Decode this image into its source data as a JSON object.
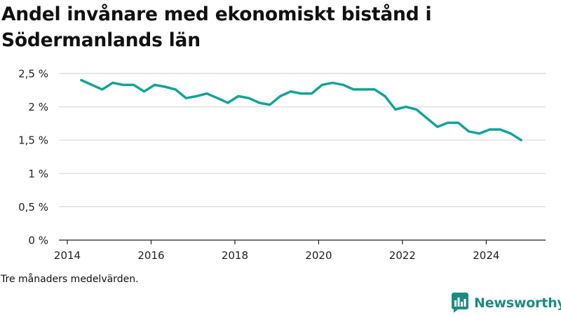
{
  "title": "Andel invånare med ekonomiskt bistånd i Södermanlands län",
  "note": "Tre månaders medelvärden.",
  "brand": {
    "name": "Newsworthy",
    "logo_icon": "newsworthy-logo-icon",
    "color": "#1c8c82"
  },
  "chart_data": {
    "type": "line",
    "title": "Andel invånare med ekonomiskt bistånd i Södermanlands län",
    "xlabel": "",
    "ylabel": "",
    "x_ticks": [
      "2014",
      "2016",
      "2018",
      "2020",
      "2022",
      "2024"
    ],
    "y_ticks": [
      "0 %",
      "0,5 %",
      "1 %",
      "1,5 %",
      "2 %",
      "2,5 %"
    ],
    "ylim": [
      0,
      2.5
    ],
    "xlim": [
      "2014-01",
      "2025-06"
    ],
    "grid": "horizontal",
    "line_color": "#13a398",
    "series": [
      {
        "points": [
          [
            "2014-05",
            2.4
          ],
          [
            "2014-08",
            2.33
          ],
          [
            "2014-11",
            2.26
          ],
          [
            "2015-02",
            2.36
          ],
          [
            "2015-05",
            2.33
          ],
          [
            "2015-08",
            2.33
          ],
          [
            "2015-11",
            2.23
          ],
          [
            "2016-02",
            2.33
          ],
          [
            "2016-05",
            2.3
          ],
          [
            "2016-08",
            2.26
          ],
          [
            "2016-11",
            2.13
          ],
          [
            "2017-02",
            2.16
          ],
          [
            "2017-05",
            2.2
          ],
          [
            "2017-08",
            2.13
          ],
          [
            "2017-11",
            2.06
          ],
          [
            "2018-02",
            2.16
          ],
          [
            "2018-05",
            2.13
          ],
          [
            "2018-08",
            2.06
          ],
          [
            "2018-11",
            2.03
          ],
          [
            "2019-02",
            2.16
          ],
          [
            "2019-05",
            2.23
          ],
          [
            "2019-08",
            2.2
          ],
          [
            "2019-11",
            2.2
          ],
          [
            "2020-02",
            2.33
          ],
          [
            "2020-05",
            2.36
          ],
          [
            "2020-08",
            2.33
          ],
          [
            "2020-11",
            2.26
          ],
          [
            "2021-02",
            2.26
          ],
          [
            "2021-05",
            2.26
          ],
          [
            "2021-08",
            2.16
          ],
          [
            "2021-11",
            1.96
          ],
          [
            "2022-02",
            2.0
          ],
          [
            "2022-05",
            1.96
          ],
          [
            "2022-08",
            1.83
          ],
          [
            "2022-11",
            1.7
          ],
          [
            "2023-02",
            1.76
          ],
          [
            "2023-05",
            1.76
          ],
          [
            "2023-08",
            1.63
          ],
          [
            "2023-11",
            1.6
          ],
          [
            "2024-02",
            1.66
          ],
          [
            "2024-05",
            1.66
          ],
          [
            "2024-08",
            1.6
          ],
          [
            "2024-11",
            1.5
          ]
        ]
      }
    ]
  }
}
